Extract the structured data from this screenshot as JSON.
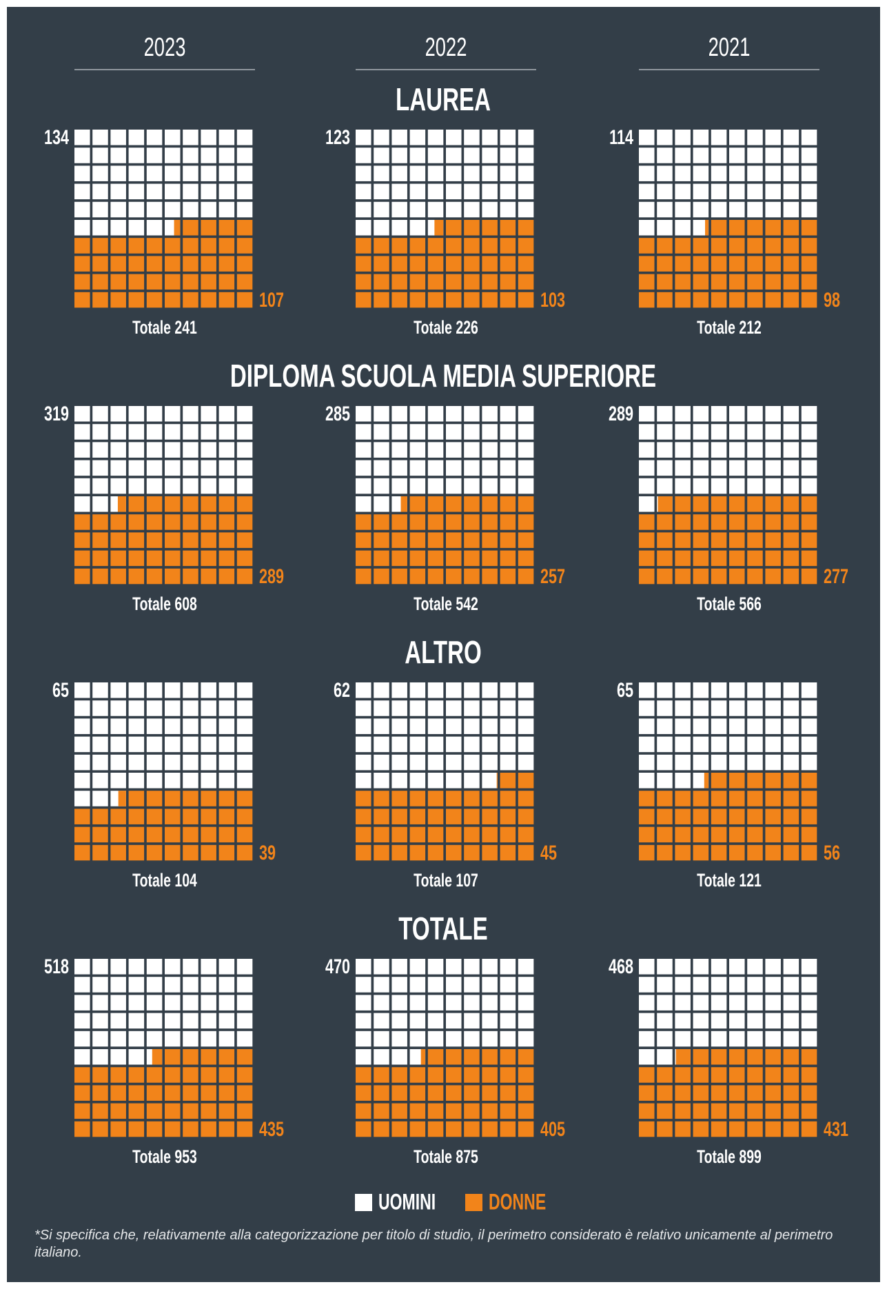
{
  "chart_data": {
    "type": "waffle",
    "years": [
      "2023",
      "2022",
      "2021"
    ],
    "total_label": "Totale",
    "colors": {
      "men": "#ffffff",
      "women": "#f2841a"
    },
    "sections": [
      {
        "title": "LAUREA",
        "panels": [
          {
            "men": 134,
            "women": 107,
            "total": 241
          },
          {
            "men": 123,
            "women": 103,
            "total": 226
          },
          {
            "men": 114,
            "women": 98,
            "total": 212
          }
        ]
      },
      {
        "title": "DIPLOMA SCUOLA MEDIA SUPERIORE",
        "panels": [
          {
            "men": 319,
            "women": 289,
            "total": 608
          },
          {
            "men": 285,
            "women": 257,
            "total": 542
          },
          {
            "men": 289,
            "women": 277,
            "total": 566
          }
        ]
      },
      {
        "title": "ALTRO",
        "panels": [
          {
            "men": 65,
            "women": 39,
            "total": 104
          },
          {
            "men": 62,
            "women": 45,
            "total": 107
          },
          {
            "men": 65,
            "women": 56,
            "total": 121
          }
        ]
      },
      {
        "title": "TOTALE",
        "panels": [
          {
            "men": 518,
            "women": 435,
            "total": 953
          },
          {
            "men": 470,
            "women": 405,
            "total": 875
          },
          {
            "men": 468,
            "women": 431,
            "total": 899
          }
        ]
      }
    ],
    "legend": {
      "men": "UOMINI",
      "women": "DONNE"
    },
    "footnote": "*Si specifica che, relativamente alla categorizzazione per titolo di studio, il perimetro considerato è relativo unicamente al perimetro italiano."
  }
}
